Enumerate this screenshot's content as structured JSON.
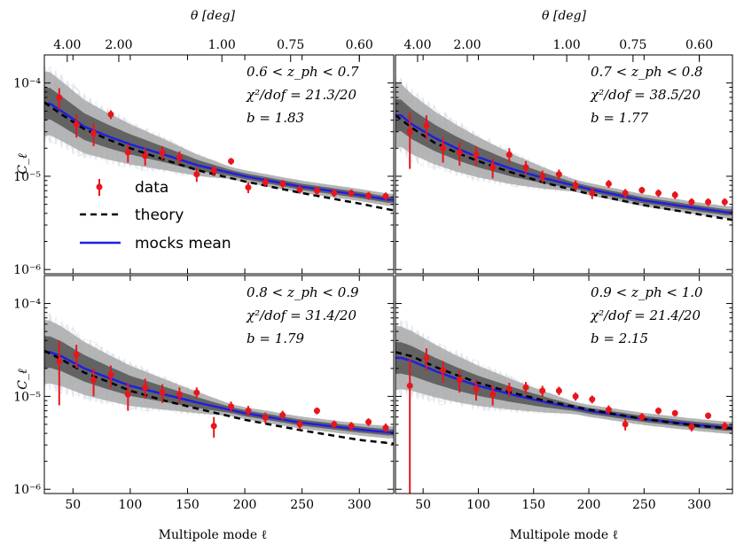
{
  "chart_data": [
    {
      "type": "line",
      "panel": "top-left",
      "annotations": [
        "0.6 < z_ph < 0.7",
        "χ²/dof = 21.3/20",
        "b = 1.83"
      ],
      "data": {
        "x": [
          38,
          53,
          68,
          83,
          98,
          113,
          128,
          143,
          158,
          173,
          188,
          203,
          218,
          233,
          248,
          263,
          278,
          293,
          308,
          323
        ],
        "y": [
          7e-05,
          3.6e-05,
          2.9e-05,
          4.6e-05,
          1.8e-05,
          1.65e-05,
          1.8e-05,
          1.6e-05,
          1.05e-05,
          1.15e-05,
          1.45e-05,
          7.6e-06,
          8.6e-06,
          8.3e-06,
          7.2e-06,
          7e-06,
          6.6e-06,
          6.6e-06,
          6.2e-06,
          6.1e-06
        ],
        "err": [
          1.8e-05,
          1e-05,
          8e-06,
          5e-06,
          4e-06,
          3.5e-06,
          3e-06,
          2.5e-06,
          1.8e-06,
          1.5e-06,
          1.2e-06,
          1e-06,
          9e-07,
          8e-07,
          7e-07,
          7e-07,
          6e-07,
          6e-07,
          6e-07,
          6e-07
        ]
      },
      "theory": {
        "x": [
          25,
          40,
          60,
          80,
          100,
          130,
          160,
          200,
          250,
          300,
          330
        ],
        "y": [
          6.2e-05,
          4.6e-05,
          3.2e-05,
          2.5e-05,
          2e-05,
          1.5e-05,
          1.15e-05,
          8.8e-06,
          6.6e-06,
          5.1e-06,
          4.3e-06
        ]
      },
      "mocks_mean": {
        "x": [
          30,
          40,
          60,
          80,
          100,
          130,
          160,
          200,
          250,
          300,
          325
        ],
        "y": [
          6e-05,
          5e-05,
          3.4e-05,
          2.7e-05,
          2.2e-05,
          1.7e-05,
          1.3e-05,
          1e-05,
          7.7e-06,
          6.3e-06,
          5.6e-06
        ]
      }
    },
    {
      "type": "line",
      "panel": "top-right",
      "annotations": [
        "0.7 < z_ph < 0.8",
        "χ²/dof = 38.5/20",
        "b = 1.77"
      ],
      "data": {
        "x": [
          38,
          53,
          68,
          83,
          98,
          113,
          128,
          143,
          158,
          173,
          188,
          203,
          218,
          233,
          248,
          263,
          278,
          293,
          308,
          323
        ],
        "y": [
          3e-05,
          3.5e-05,
          2e-05,
          1.8e-05,
          1.7e-05,
          1.25e-05,
          1.7e-05,
          1.25e-05,
          1e-05,
          1.05e-05,
          8e-06,
          6.6e-06,
          8.3e-06,
          6.6e-06,
          7.1e-06,
          6.6e-06,
          6.3e-06,
          5.3e-06,
          5.3e-06,
          5.3e-06
        ],
        "err": [
          1.8e-05,
          1e-05,
          6e-06,
          5e-06,
          4e-06,
          3e-06,
          3e-06,
          2e-06,
          1.5e-06,
          1.3e-06,
          1e-06,
          9e-07,
          8e-07,
          7e-07,
          6e-07,
          6e-07,
          6e-07,
          5e-07,
          5e-07,
          5e-07
        ]
      },
      "theory": {
        "x": [
          25,
          40,
          60,
          80,
          100,
          130,
          160,
          200,
          250,
          300,
          330
        ],
        "y": [
          4.5e-05,
          3.3e-05,
          2.3e-05,
          1.8e-05,
          1.45e-05,
          1.1e-05,
          8.5e-06,
          6.5e-06,
          4.9e-06,
          3.9e-06,
          3.4e-06
        ]
      },
      "mocks_mean": {
        "x": [
          30,
          40,
          60,
          80,
          100,
          130,
          160,
          200,
          250,
          300,
          325
        ],
        "y": [
          4.5e-05,
          3.6e-05,
          2.6e-05,
          2e-05,
          1.6e-05,
          1.2e-05,
          9.5e-06,
          7.3e-06,
          5.5e-06,
          4.5e-06,
          4.1e-06
        ]
      }
    },
    {
      "type": "line",
      "panel": "bottom-left",
      "annotations": [
        "0.8 < z_ph < 0.9",
        "χ²/dof = 31.4/20",
        "b = 1.79"
      ],
      "data": {
        "x": [
          38,
          53,
          68,
          83,
          98,
          113,
          128,
          143,
          158,
          173,
          188,
          203,
          218,
          233,
          248,
          263,
          278,
          293,
          308,
          323
        ],
        "y": [
          2.4e-05,
          2.8e-05,
          1.5e-05,
          1.7e-05,
          1.05e-05,
          1.25e-05,
          1.1e-05,
          1.05e-05,
          1.1e-05,
          4.8e-06,
          7.8e-06,
          7e-06,
          5.9e-06,
          6.3e-06,
          5e-06,
          7e-06,
          5e-06,
          4.8e-06,
          5.3e-06,
          4.6e-06
        ],
        "err": [
          1.6e-05,
          8e-06,
          5e-06,
          4.5e-06,
          3.5e-06,
          3e-06,
          2.5e-06,
          2e-06,
          1.5e-06,
          1.2e-06,
          1e-06,
          9e-07,
          8e-07,
          7e-07,
          6e-07,
          6e-07,
          5e-07,
          5e-07,
          5e-07,
          5e-07
        ]
      },
      "theory": {
        "x": [
          25,
          40,
          60,
          80,
          100,
          130,
          160,
          200,
          250,
          300,
          330
        ],
        "y": [
          3.1e-05,
          2.5e-05,
          1.8e-05,
          1.45e-05,
          1.15e-05,
          9e-06,
          7.3e-06,
          5.6e-06,
          4.3e-06,
          3.4e-06,
          3.1e-06
        ]
      },
      "mocks_mean": {
        "x": [
          30,
          40,
          60,
          80,
          100,
          130,
          160,
          200,
          250,
          300,
          325
        ],
        "y": [
          3e-05,
          2.7e-05,
          2e-05,
          1.6e-05,
          1.3e-05,
          1.05e-05,
          8.5e-06,
          6.6e-06,
          5.2e-06,
          4.4e-06,
          4.1e-06
        ]
      }
    },
    {
      "type": "line",
      "panel": "bottom-right",
      "annotations": [
        "0.9 < z_ph < 1.0",
        "χ²/dof = 21.4/20",
        "b = 2.15"
      ],
      "data": {
        "x": [
          38,
          53,
          68,
          83,
          98,
          113,
          128,
          143,
          158,
          173,
          188,
          203,
          218,
          233,
          248,
          263,
          278,
          293,
          308,
          323
        ],
        "y": [
          1.3e-05,
          2.6e-05,
          1.9e-05,
          1.5e-05,
          1.2e-05,
          1.05e-05,
          1.2e-05,
          1.25e-05,
          1.15e-05,
          1.15e-05,
          1e-05,
          9.3e-06,
          7.2e-06,
          5e-06,
          6e-06,
          7e-06,
          6.6e-06,
          4.7e-06,
          6.2e-06,
          4.8e-06
        ],
        "err": [
          1.25e-05,
          7e-06,
          5e-06,
          4e-06,
          3e-06,
          2.5e-06,
          2e-06,
          1.8e-06,
          1.5e-06,
          1.2e-06,
          1e-06,
          9e-07,
          8e-07,
          7e-07,
          6e-07,
          6e-07,
          5e-07,
          5e-07,
          5e-07,
          5e-07
        ]
      },
      "theory": {
        "x": [
          25,
          40,
          60,
          80,
          100,
          130,
          160,
          200,
          250,
          300,
          330
        ],
        "y": [
          3e-05,
          2.7e-05,
          2.1e-05,
          1.7e-05,
          1.4e-05,
          1.1e-05,
          9e-06,
          7.2e-06,
          5.7e-06,
          4.8e-06,
          4.5e-06
        ]
      },
      "mocks_mean": {
        "x": [
          30,
          40,
          60,
          80,
          100,
          130,
          160,
          200,
          250,
          300,
          325
        ],
        "y": [
          2.6e-05,
          2.4e-05,
          1.9e-05,
          1.55e-05,
          1.3e-05,
          1.05e-05,
          8.7e-06,
          7e-06,
          5.7e-06,
          4.9e-06,
          4.6e-06
        ]
      }
    }
  ],
  "shared": {
    "xlabel": "Multipole mode ℓ",
    "ylabel": "C_ℓ",
    "top_axis_label": "θ [deg]",
    "x_ticks": [
      50,
      100,
      150,
      200,
      250,
      300
    ],
    "x_tick_labels": [
      "50",
      "100",
      "150",
      "200",
      "250",
      "300"
    ],
    "xlim": [
      25,
      330
    ],
    "y_scale": "log",
    "ylim": [
      9e-07,
      0.0002
    ],
    "y_ticks": [
      1e-06,
      1e-05,
      0.0001
    ],
    "y_tick_labels": [
      "10⁻⁶",
      "10⁻⁵",
      "10⁻⁴"
    ],
    "top_ticks_ell": [
      45,
      90,
      180,
      240,
      300
    ],
    "top_tick_labels": [
      "4.00",
      "2.00",
      "1.00",
      "0.75",
      "0.60"
    ],
    "legend": [
      "data",
      "theory",
      "mocks mean"
    ],
    "legend_position": "lower-left of top-left panel",
    "colors": {
      "data": "#e8161b",
      "theory": "#000000",
      "mocks_mean": "#1f1fe0",
      "band_inner": "#555555",
      "band_outer": "#aaaaaa",
      "mock_lines": "#dfe3ec"
    }
  }
}
